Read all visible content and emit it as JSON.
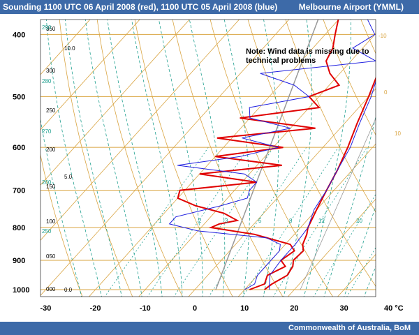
{
  "header": {
    "title": "Sounding 1100 UTC  06 April 2008 (red), 1100 UTC 05 April 2008 (blue)",
    "location": "Melbourne Airport (YMML)"
  },
  "footer": {
    "credit": "Commonwealth of Australia, BoM"
  },
  "note": {
    "line1": "Note: Wind data is missing due to",
    "line2": "technical problems"
  },
  "colors": {
    "header": "#3d6aa8",
    "red": "#e00000",
    "blue": "#2020e0",
    "isotherm": "#d9a441",
    "mixing": "#20a090",
    "grey": "#999999"
  },
  "chart_data": {
    "type": "line",
    "title": "Sounding 1100 UTC  06 April 2008 (red), 1100 UTC 05 April 2008 (blue)",
    "xlabel": "°C",
    "ylabel": "hPa",
    "xlim": [
      -30,
      45
    ],
    "ylim": [
      1000,
      250
    ],
    "x_ticks": [
      "-30",
      "-20",
      "-10",
      "0",
      "10",
      "20",
      "30",
      "40 °C"
    ],
    "y_ticks": [
      "300",
      "400",
      "500",
      "600",
      "700",
      "800",
      "900",
      "1000"
    ],
    "y_unit": "hPa",
    "height_labels": [
      "350",
      "300",
      "250",
      "200",
      "150",
      "100",
      "050",
      "000"
    ],
    "altitude_labels": [
      "10.0",
      "5.0",
      "0.0"
    ],
    "mixing_labels": [
      "1",
      "2",
      "3",
      "5",
      "8",
      "12",
      "20"
    ],
    "theta_labels": [
      "290",
      "280",
      "270",
      "260",
      "250"
    ],
    "right_labels": [
      "-10",
      "0",
      "10"
    ],
    "series": [
      {
        "name": "06 April 2008",
        "color": "red",
        "temp": [
          [
            1000,
            14
          ],
          [
            980,
            14.5
          ],
          [
            950,
            16
          ],
          [
            920,
            15.5
          ],
          [
            900,
            14.5
          ],
          [
            870,
            14.8
          ],
          [
            850,
            13.5
          ],
          [
            820,
            12.5
          ],
          [
            800,
            11.5
          ],
          [
            750,
            10
          ],
          [
            700,
            8.5
          ],
          [
            650,
            7
          ],
          [
            600,
            5
          ],
          [
            550,
            2.5
          ],
          [
            500,
            0
          ],
          [
            450,
            -3
          ],
          [
            420,
            -5
          ],
          [
            400,
            -7
          ],
          [
            370,
            -9
          ],
          [
            340,
            -10
          ],
          [
            300,
            -10.5
          ],
          [
            270,
            -12
          ],
          [
            260,
            -12.5
          ]
        ],
        "dew": [
          [
            1000,
            11
          ],
          [
            980,
            13
          ],
          [
            950,
            12
          ],
          [
            920,
            14
          ],
          [
            900,
            12
          ],
          [
            870,
            13
          ],
          [
            850,
            11
          ],
          [
            820,
            2
          ],
          [
            800,
            -8
          ],
          [
            790,
            -7
          ],
          [
            780,
            -4
          ],
          [
            760,
            -8
          ],
          [
            740,
            -15
          ],
          [
            720,
            -20
          ],
          [
            700,
            -21
          ],
          [
            680,
            -7
          ],
          [
            660,
            -20
          ],
          [
            640,
            -5
          ],
          [
            620,
            -20
          ],
          [
            600,
            -8
          ],
          [
            580,
            -23
          ],
          [
            560,
            -5
          ],
          [
            540,
            -22
          ],
          [
            520,
            -8
          ],
          [
            500,
            -12
          ],
          [
            480,
            -8
          ],
          [
            460,
            -12
          ],
          [
            440,
            -15
          ],
          [
            420,
            -16
          ],
          [
            400,
            -18
          ],
          [
            370,
            -21
          ],
          [
            340,
            -24
          ],
          [
            300,
            -26
          ],
          [
            270,
            -22
          ],
          [
            260,
            -24
          ]
        ]
      },
      {
        "name": "05 April 2008",
        "color": "blue",
        "temp": [
          [
            1000,
            15
          ],
          [
            980,
            14
          ],
          [
            950,
            12.5
          ],
          [
            900,
            12
          ],
          [
            870,
            12
          ],
          [
            850,
            12
          ],
          [
            800,
            11.5
          ],
          [
            750,
            9.5
          ],
          [
            700,
            8.5
          ],
          [
            650,
            7
          ],
          [
            600,
            5.5
          ],
          [
            550,
            3
          ],
          [
            500,
            0.5
          ],
          [
            450,
            -3
          ],
          [
            420,
            -5
          ],
          [
            400,
            -7
          ],
          [
            370,
            -9
          ],
          [
            340,
            -10
          ],
          [
            300,
            -10.5
          ],
          [
            270,
            -11
          ],
          [
            260,
            -12
          ]
        ],
        "dew": [
          [
            1000,
            10
          ],
          [
            980,
            11
          ],
          [
            950,
            10
          ],
          [
            900,
            10
          ],
          [
            870,
            10
          ],
          [
            850,
            9
          ],
          [
            830,
            5
          ],
          [
            810,
            -10
          ],
          [
            790,
            -17
          ],
          [
            770,
            -17
          ],
          [
            740,
            -10
          ],
          [
            720,
            -6
          ],
          [
            700,
            -7
          ],
          [
            680,
            -7
          ],
          [
            660,
            -11
          ],
          [
            640,
            -26
          ],
          [
            620,
            -15
          ],
          [
            600,
            -9
          ],
          [
            580,
            -18
          ],
          [
            560,
            -10
          ],
          [
            540,
            -20
          ],
          [
            520,
            -22
          ],
          [
            500,
            -12
          ],
          [
            480,
            -17
          ],
          [
            460,
            -26
          ],
          [
            440,
            -5
          ],
          [
            420,
            -12
          ],
          [
            400,
            -10
          ],
          [
            380,
            -14
          ],
          [
            360,
            -17
          ],
          [
            340,
            -17
          ],
          [
            300,
            -14
          ],
          [
            280,
            -13
          ],
          [
            270,
            -19
          ],
          [
            260,
            -18
          ]
        ]
      }
    ]
  }
}
